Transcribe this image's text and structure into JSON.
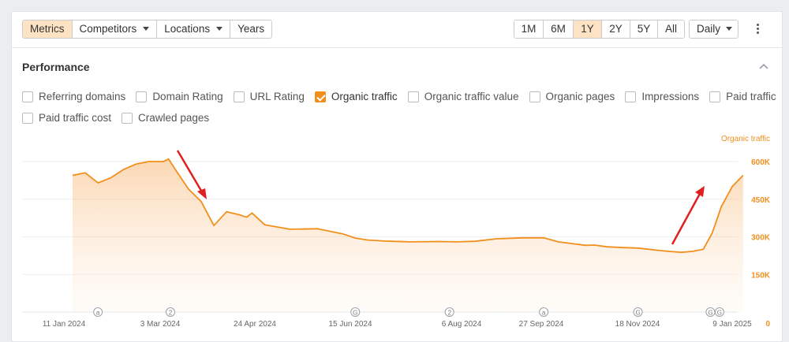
{
  "toolbar": {
    "view_tabs": [
      {
        "label": "Metrics",
        "active": true
      },
      {
        "label": "Competitors",
        "dropdown": true
      },
      {
        "label": "Locations",
        "dropdown": true
      },
      {
        "label": "Years"
      }
    ],
    "ranges": [
      {
        "label": "1M"
      },
      {
        "label": "6M"
      },
      {
        "label": "1Y",
        "active": true
      },
      {
        "label": "2Y"
      },
      {
        "label": "5Y"
      },
      {
        "label": "All"
      }
    ],
    "interval": "Daily",
    "more_icon": "kebab-menu-icon"
  },
  "section": {
    "title": "Performance",
    "collapse_icon": "chevron-up-icon"
  },
  "metrics": [
    {
      "label": "Referring domains",
      "checked": false
    },
    {
      "label": "Domain Rating",
      "checked": false
    },
    {
      "label": "URL Rating",
      "checked": false
    },
    {
      "label": "Organic traffic",
      "checked": true
    },
    {
      "label": "Organic traffic value",
      "checked": false
    },
    {
      "label": "Organic pages",
      "checked": false
    },
    {
      "label": "Impressions",
      "checked": false
    },
    {
      "label": "Paid traffic",
      "checked": false
    },
    {
      "label": "Paid traffic cost",
      "checked": false
    },
    {
      "label": "Crawled pages",
      "checked": false
    }
  ],
  "colors": {
    "accent": "#f28f1c",
    "annotation_arrow": "#e02020",
    "tab_active_bg": "#fde3c4"
  },
  "chart_data": {
    "type": "area",
    "series": [
      {
        "name": "Organic traffic",
        "x": [
          "2024-01-11",
          "2024-01-18",
          "2024-01-25",
          "2024-02-01",
          "2024-02-08",
          "2024-02-15",
          "2024-02-22",
          "2024-03-01",
          "2024-03-04",
          "2024-03-08",
          "2024-03-15",
          "2024-03-22",
          "2024-03-26",
          "2024-03-29",
          "2024-04-05",
          "2024-04-12",
          "2024-04-16",
          "2024-04-19",
          "2024-04-26",
          "2024-05-10",
          "2024-05-25",
          "2024-06-08",
          "2024-06-15",
          "2024-06-22",
          "2024-07-01",
          "2024-07-15",
          "2024-08-01",
          "2024-08-10",
          "2024-08-20",
          "2024-09-01",
          "2024-09-15",
          "2024-09-27",
          "2024-10-05",
          "2024-10-20",
          "2024-10-25",
          "2024-11-01",
          "2024-11-10",
          "2024-11-18",
          "2024-11-28",
          "2024-12-05",
          "2024-12-12",
          "2024-12-18",
          "2024-12-24",
          "2024-12-29",
          "2025-01-03",
          "2025-01-09",
          "2025-01-15"
        ],
        "values": [
          545,
          555,
          515,
          535,
          568,
          590,
          600,
          600,
          610,
          565,
          490,
          440,
          385,
          345,
          400,
          388,
          378,
          395,
          348,
          330,
          332,
          312,
          295,
          287,
          283,
          280,
          281,
          280,
          282,
          292,
          296,
          296,
          280,
          266,
          267,
          260,
          257,
          255,
          247,
          242,
          238,
          242,
          250,
          315,
          420,
          500,
          545
        ]
      }
    ],
    "x_ticks": [
      "11 Jan 2024",
      "3 Mar 2024",
      "24 Apr 2024",
      "15 Jun 2024",
      "6 Aug 2024",
      "27 Sep 2024",
      "18 Nov 2024",
      "9 Jan 2025"
    ],
    "y_ticks": [
      "600K",
      "450K",
      "300K",
      "150K",
      "0"
    ],
    "y_axis_title": "Organic traffic",
    "ylim": [
      0,
      600
    ],
    "grid": true,
    "markers": [
      {
        "label": "a",
        "x": "2024-01-25"
      },
      {
        "label": "2",
        "x": "2024-03-05"
      },
      {
        "label": "G",
        "x": "2024-06-15"
      },
      {
        "label": "2",
        "x": "2024-08-06"
      },
      {
        "label": "a",
        "x": "2024-09-27"
      },
      {
        "label": "G",
        "x": "2024-11-18"
      },
      {
        "label": "G",
        "x": "2024-12-28"
      },
      {
        "label": "G",
        "x": "2025-01-02"
      }
    ]
  }
}
